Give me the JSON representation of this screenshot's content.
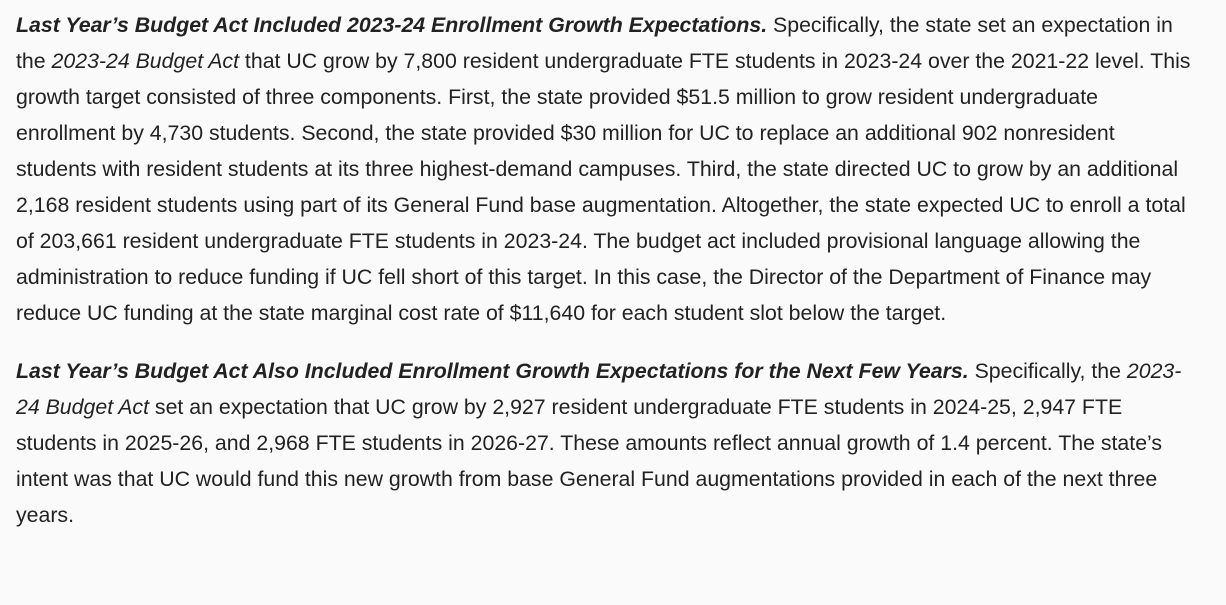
{
  "paragraphs": [
    {
      "lead": "Last Year’s Budget Act Included 2023-24 Enrollment Growth Expectations.",
      "text_1": " Specifically, the state set an expectation in the ",
      "italic_1": "2023-24 Budget Act",
      "text_2": " that UC grow by 7,800 resident undergraduate FTE students in 2023-24 over the 2021-22 level. This growth target consisted of three components. First, the state provided $51.5 million to grow resident undergraduate enrollment by 4,730 students. Second, the state provided $30 million for UC to replace an additional 902 nonresident students with resident students at its three highest-demand campuses. Third, the state directed UC to grow by an additional 2,168 resident students using part of its General Fund base augmentation. Altogether, the state expected UC to enroll a total of 203,661 resident undergraduate FTE students in 2023-24. The budget act included provisional language allowing the administration to reduce funding if UC fell short of this target. In this case, the Director of the Department of Finance may reduce UC funding at the state marginal cost rate of $11,640 for each student slot below the target."
    },
    {
      "lead": "Last Year’s Budget Act Also Included Enrollment Growth Expectations for the Next Few Years.",
      "text_1": " Specifically, the ",
      "italic_1": "2023-24 Budget Act",
      "text_2": " set an expectation that UC grow by 2,927 resident undergraduate FTE students in 2024-25, 2,947 FTE students in 2025-26, and 2,968 FTE students in 2026-27. These amounts reflect annual growth of 1.4 percent. The state’s intent was that UC would fund this new growth from base General Fund augmentations provided in each of the next three years."
    }
  ]
}
